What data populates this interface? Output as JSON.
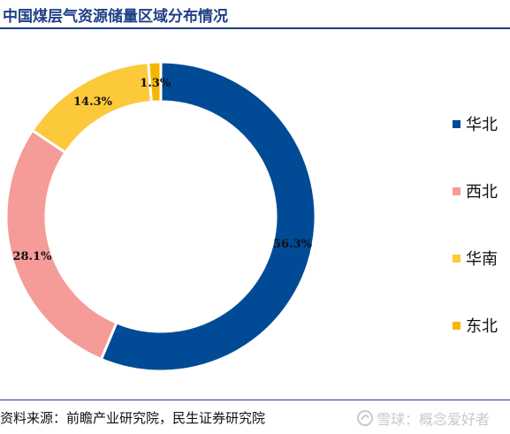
{
  "title": "中国煤层气资源储量区域分布情况",
  "source": "资料来源：前瞻产业研究院，民生证券研究院",
  "watermark": "雪球：概念爱好者",
  "colors": {
    "title": "#1f3f86",
    "rule": "#1f3f86"
  },
  "chart_data": {
    "type": "pie",
    "variant": "donut",
    "categories": [
      "华北",
      "西北",
      "华南",
      "东北"
    ],
    "values": [
      56.3,
      28.1,
      14.3,
      1.3
    ],
    "value_labels": [
      "56.3%",
      "28.1%",
      "14.3%",
      "1.3%"
    ],
    "colors": [
      "#004a96",
      "#f59b98",
      "#fcc93b",
      "#f7b500"
    ],
    "start_angle": "12 o'clock",
    "direction": "clockwise",
    "legend_position": "right"
  }
}
